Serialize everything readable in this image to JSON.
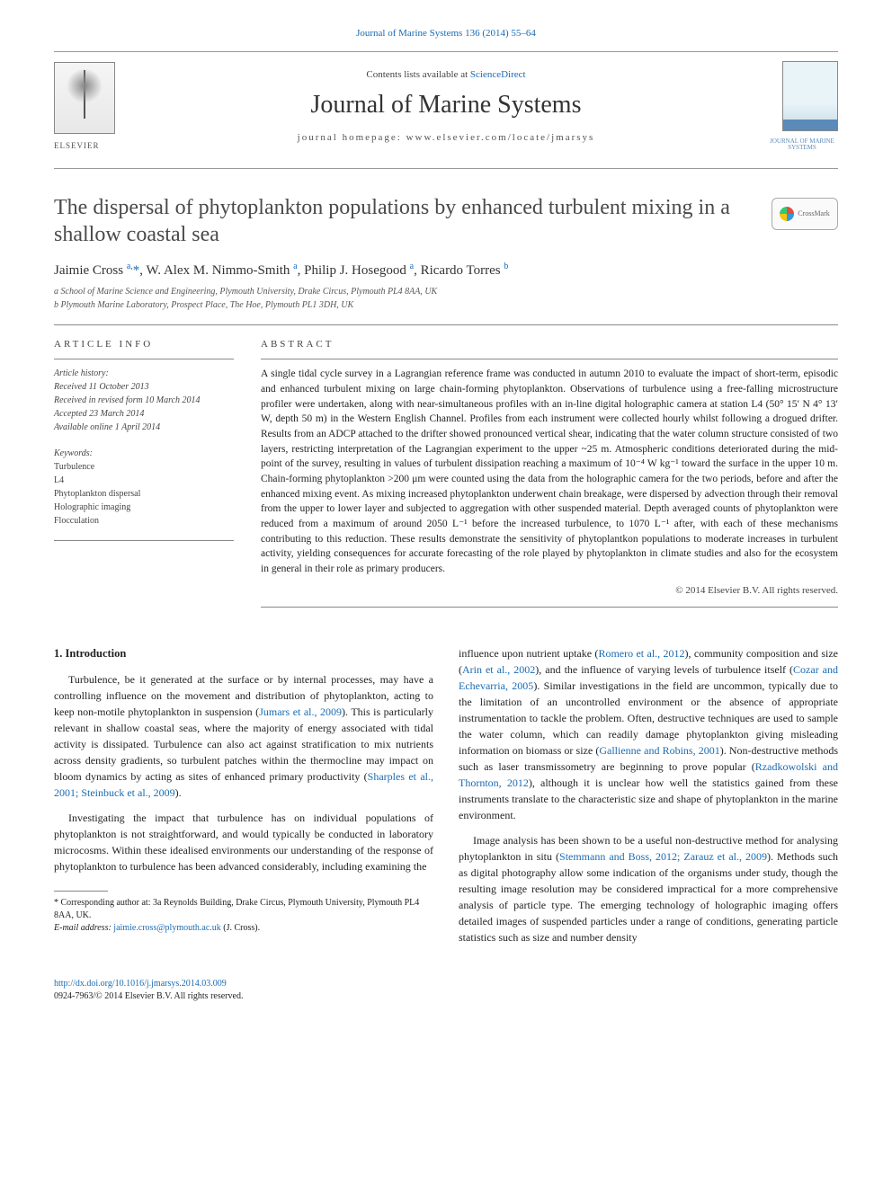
{
  "top_link": {
    "prefix": "",
    "journal": "Journal of Marine Systems 136 (2014) 55–64"
  },
  "masthead": {
    "contents_prefix": "Contents lists available at ",
    "contents_link": "ScienceDirect",
    "journal_name": "Journal of Marine Systems",
    "homepage_label": "journal homepage: www.elsevier.com/locate/jmarsys",
    "publisher_logo_label": "ELSEVIER",
    "cover_caption": "JOURNAL OF MARINE SYSTEMS"
  },
  "crossmark_label": "CrossMark",
  "title": "The dispersal of phytoplankton populations by enhanced turbulent mixing in a shallow coastal sea",
  "authors_html": "Jaimie Cross <sup>a,</sup><span class='star'>*</span>, W. Alex M. Nimmo-Smith <sup>a</sup>, Philip J. Hosegood <sup>a</sup>, Ricardo Torres <sup>b</sup>",
  "affiliations": [
    "a  School of Marine Science and Engineering, Plymouth University, Drake Circus, Plymouth PL4 8AA, UK",
    "b  Plymouth Marine Laboratory, Prospect Place, The Hoe, Plymouth PL1 3DH, UK"
  ],
  "article_info": {
    "label": "ARTICLE INFO",
    "history_hdr": "Article history:",
    "history": [
      "Received 11 October 2013",
      "Received in revised form 10 March 2014",
      "Accepted 23 March 2014",
      "Available online 1 April 2014"
    ],
    "keywords_hdr": "Keywords:",
    "keywords": [
      "Turbulence",
      "L4",
      "Phytoplankton dispersal",
      "Holographic imaging",
      "Flocculation"
    ]
  },
  "abstract": {
    "label": "ABSTRACT",
    "text": "A single tidal cycle survey in a Lagrangian reference frame was conducted in autumn 2010 to evaluate the impact of short-term, episodic and enhanced turbulent mixing on large chain-forming phytoplankton. Observations of turbulence using a free-falling microstructure profiler were undertaken, along with near-simultaneous profiles with an in-line digital holographic camera at station L4 (50° 15′ N 4° 13′ W, depth 50 m) in the Western English Channel. Profiles from each instrument were collected hourly whilst following a drogued drifter. Results from an ADCP attached to the drifter showed pronounced vertical shear, indicating that the water column structure consisted of two layers, restricting interpretation of the Lagrangian experiment to the upper ~25 m. Atmospheric conditions deteriorated during the mid-point of the survey, resulting in values of turbulent dissipation reaching a maximum of 10⁻⁴ W kg⁻¹ toward the surface in the upper 10 m. Chain-forming phytoplankton >200 μm were counted using the data from the holographic camera for the two periods, before and after the enhanced mixing event. As mixing increased phytoplankton underwent chain breakage, were dispersed by advection through their removal from the upper to lower layer and subjected to aggregation with other suspended material. Depth averaged counts of phytoplankton were reduced from a maximum of around 2050 L⁻¹ before the increased turbulence, to 1070 L⁻¹ after, with each of these mechanisms contributing to this reduction. These results demonstrate the sensitivity of phytoplantkon populations to moderate increases in turbulent activity, yielding consequences for accurate forecasting of the role played by phytoplankton in climate studies and also for the ecosystem in general in their role as primary producers.",
    "copyright": "© 2014 Elsevier B.V. All rights reserved."
  },
  "body": {
    "intro_heading": "1. Introduction",
    "left_paras": [
      "Turbulence, be it generated at the surface or by internal processes, may have a controlling influence on the movement and distribution of phytoplankton, acting to keep non-motile phytoplankton in suspension (<a>Jumars et al., 2009</a>). This is particularly relevant in shallow coastal seas, where the majority of energy associated with tidal activity is dissipated. Turbulence can also act against stratification to mix nutrients across density gradients, so turbulent patches within the thermocline may impact on bloom dynamics by acting as sites of enhanced primary productivity (<a>Sharples et al., 2001; Steinbuck et al., 2009</a>).",
      "Investigating the impact that turbulence has on individual populations of phytoplankton is not straightforward, and would typically be conducted in laboratory microcosms. Within these idealised environments our understanding of the response of phytoplankton to turbulence has been advanced considerably, including examining the"
    ],
    "right_paras": [
      "influence upon nutrient uptake (<a>Romero et al., 2012</a>), community composition and size (<a>Arin et al., 2002</a>), and the influence of varying levels of turbulence itself (<a>Cozar and Echevarria, 2005</a>). Similar investigations in the field are uncommon, typically due to the limitation of an uncontrolled environment or the absence of appropriate instrumentation to tackle the problem. Often, destructive techniques are used to sample the water column, which can readily damage phytoplankton giving misleading information on biomass or size (<a>Gallienne and Robins, 2001</a>). Non-destructive methods such as laser transmissometry are beginning to prove popular (<a>Rzadkowolski and Thornton, 2012</a>), although it is unclear how well the statistics gained from these instruments translate to the characteristic size and shape of phytoplankton in the marine environment.",
      "Image analysis has been shown to be a useful non-destructive method for analysing phytoplankton in situ (<a>Stemmann and Boss, 2012; Zarauz et al., 2009</a>). Methods such as digital photography allow some indication of the organisms under study, though the resulting image resolution may be considered impractical for a more comprehensive analysis of particle type. The emerging technology of holographic imaging offers detailed images of suspended particles under a range of conditions, generating particle statistics such as size and number density"
    ]
  },
  "footnote": {
    "corresponding": "* Corresponding author at: 3a Reynolds Building, Drake Circus, Plymouth University, Plymouth PL4 8AA, UK.",
    "email_label": "E-mail address:",
    "email": "jaimie.cross@plymouth.ac.uk",
    "email_suffix": "(J. Cross)."
  },
  "footer": {
    "doi": "http://dx.doi.org/10.1016/j.jmarsys.2014.03.009",
    "issn_line": "0924-7963/© 2014 Elsevier B.V. All rights reserved."
  },
  "colors": {
    "link": "#1a6bb3",
    "rule": "#888888",
    "text": "#222222"
  }
}
